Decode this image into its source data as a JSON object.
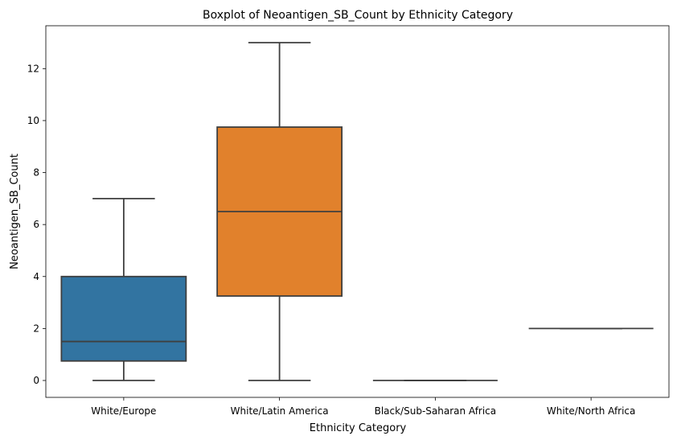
{
  "chart_data": {
    "type": "boxplot",
    "title": "Boxplot of Neoantigen_SB_Count by Ethnicity Category",
    "xlabel": "Ethnicity Category",
    "ylabel": "Neoantigen_SB_Count",
    "ylim": [
      -0.65,
      13.65
    ],
    "yticks": [
      0,
      2,
      4,
      6,
      8,
      10,
      12
    ],
    "grid": false,
    "categories": [
      "White/Europe",
      "White/Latin America",
      "Black/Sub-Saharan Africa",
      "White/North Africa"
    ],
    "boxes": [
      {
        "category": "White/Europe",
        "whisker_low": 0,
        "q1": 0.75,
        "median": 1.5,
        "q3": 4,
        "whisker_high": 7,
        "color": "#3274a1"
      },
      {
        "category": "White/Latin America",
        "whisker_low": 0,
        "q1": 3.25,
        "median": 6.5,
        "q3": 9.75,
        "whisker_high": 13,
        "color": "#e1812c"
      },
      {
        "category": "Black/Sub-Saharan Africa",
        "whisker_low": 0,
        "q1": 0,
        "median": 0,
        "q3": 0,
        "whisker_high": 0,
        "color": "#3a923a"
      },
      {
        "category": "White/North Africa",
        "whisker_low": 2,
        "q1": 2,
        "median": 2,
        "q3": 2,
        "whisker_high": 2,
        "color": "#c03d3e"
      }
    ]
  },
  "line_color": "#3f3f3f"
}
